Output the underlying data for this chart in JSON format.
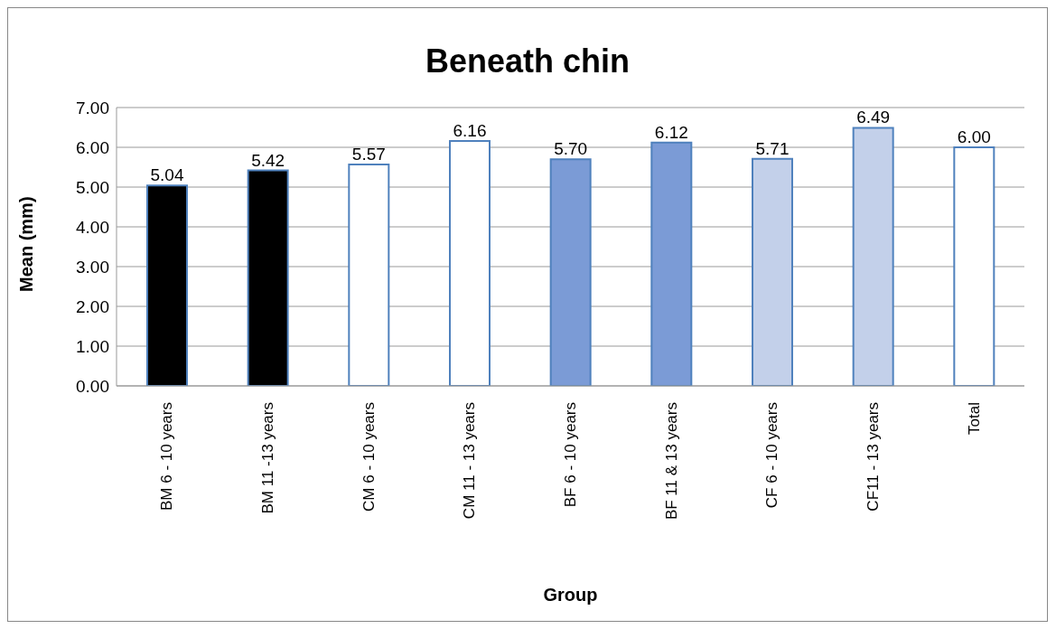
{
  "chart_data": {
    "type": "bar",
    "title": "Beneath chin",
    "xlabel": "Group",
    "ylabel": "Mean (mm)",
    "categories": [
      "BM 6 - 10 years",
      "BM 11 -13 years",
      "CM 6 - 10 years",
      "CM 11 - 13 years",
      "BF 6 - 10 years",
      "BF 11 & 13 years",
      "CF 6 - 10 years",
      "CF11 - 13 years",
      "Total"
    ],
    "values": [
      5.04,
      5.42,
      5.57,
      6.16,
      5.7,
      6.12,
      5.71,
      6.49,
      6.0
    ],
    "colors": [
      "#000000",
      "#000000",
      "#ffffff",
      "#ffffff",
      "#7b9bd6",
      "#7b9bd6",
      "#c3d0ea",
      "#c3d0ea",
      "#ffffff"
    ],
    "value_labels": [
      "5.04",
      "5.42",
      "5.57",
      "6.16",
      "5.70",
      "6.12",
      "5.71",
      "6.49",
      "6.00"
    ],
    "ylim": [
      0,
      7
    ],
    "yticks": [
      {
        "value": 0,
        "label": "0.00"
      },
      {
        "value": 1,
        "label": "1.00"
      },
      {
        "value": 2,
        "label": "2.00"
      },
      {
        "value": 3,
        "label": "3.00"
      },
      {
        "value": 4,
        "label": "4.00"
      },
      {
        "value": 5,
        "label": "5.00"
      },
      {
        "value": 6,
        "label": "6.00"
      },
      {
        "value": 7,
        "label": "7.00"
      }
    ],
    "grid": "y"
  }
}
